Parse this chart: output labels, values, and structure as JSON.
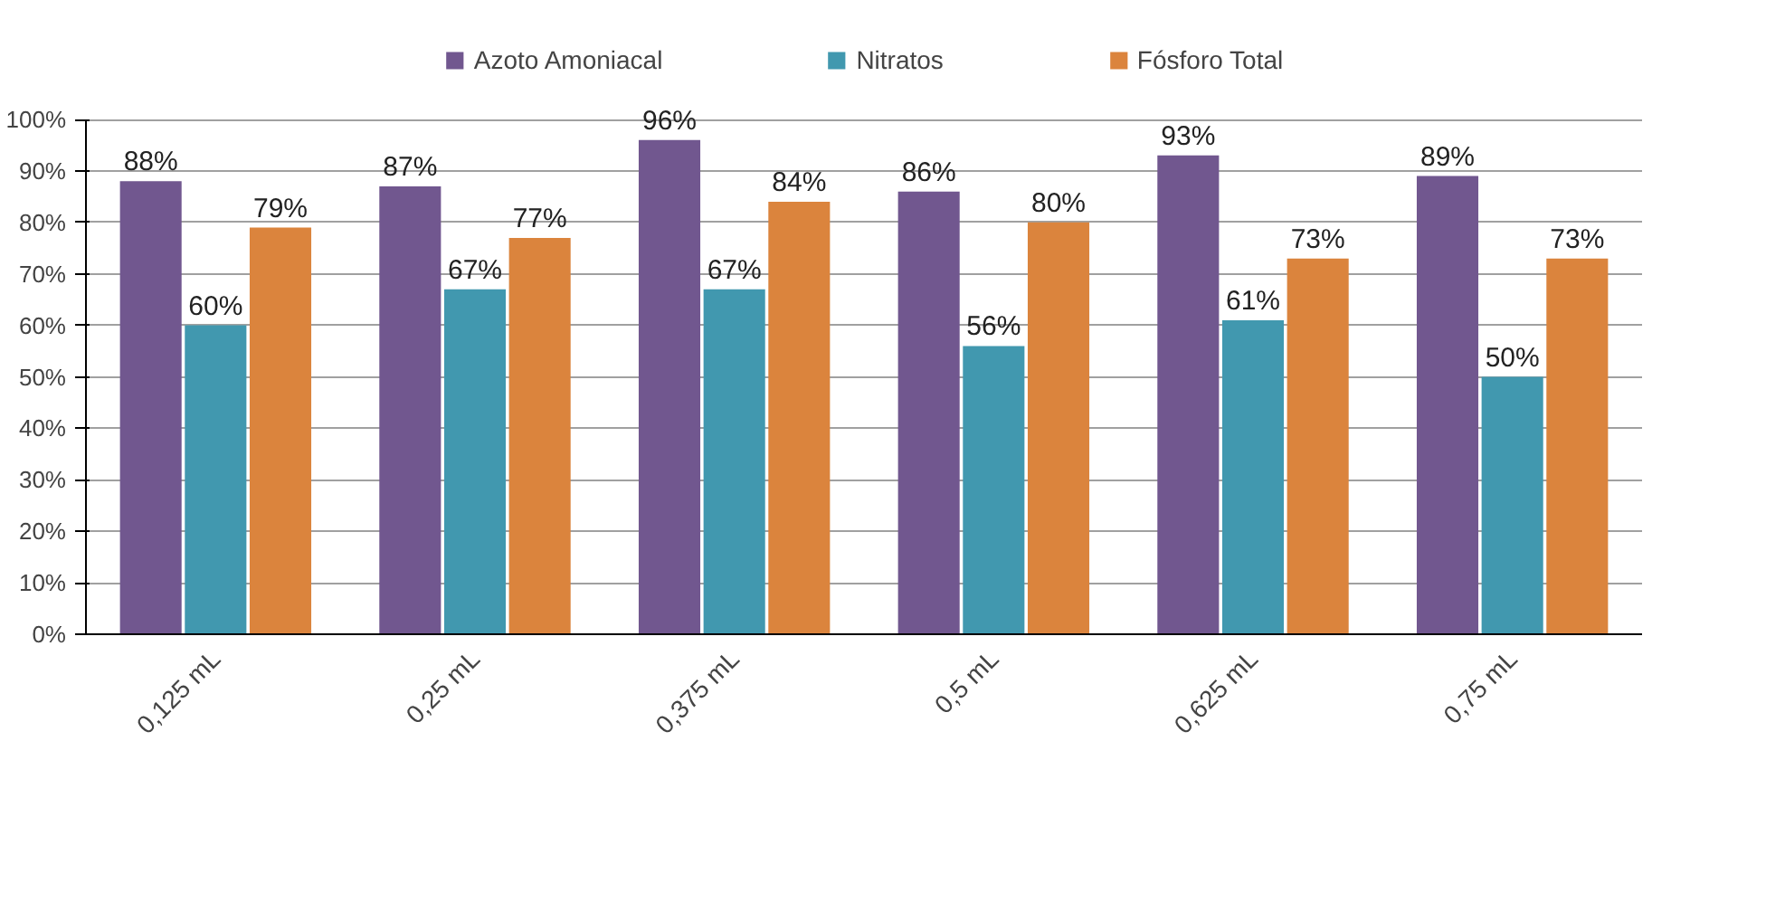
{
  "chart_data": {
    "type": "bar",
    "categories": [
      "0,125 mL",
      "0,25 mL",
      "0,375 mL",
      "0,5 mL",
      "0,625 mL",
      "0,75 mL"
    ],
    "series": [
      {
        "name": "Azoto Amoniacal",
        "color": "#71578f",
        "values": [
          88,
          87,
          96,
          86,
          93,
          89
        ],
        "value_labels": [
          "88%",
          "87%",
          "96%",
          "86%",
          "93%",
          "89%"
        ]
      },
      {
        "name": "Nitratos",
        "color": "#4198af",
        "values": [
          60,
          67,
          67,
          56,
          61,
          50
        ],
        "value_labels": [
          "60%",
          "67%",
          "67%",
          "56%",
          "61%",
          "50%"
        ]
      },
      {
        "name": "Fósforo Total",
        "color": "#db843d",
        "values": [
          79,
          77,
          84,
          80,
          73,
          73
        ],
        "value_labels": [
          "79%",
          "77%",
          "84%",
          "80%",
          "73%",
          "73%"
        ]
      }
    ],
    "ylim": [
      0,
      100
    ],
    "yticks": [
      {
        "value": 0,
        "label": "0%"
      },
      {
        "value": 10,
        "label": "10%"
      },
      {
        "value": 20,
        "label": "20%"
      },
      {
        "value": 30,
        "label": "30%"
      },
      {
        "value": 40,
        "label": "40%"
      },
      {
        "value": 50,
        "label": "50%"
      },
      {
        "value": 60,
        "label": "60%"
      },
      {
        "value": 70,
        "label": "70%"
      },
      {
        "value": 80,
        "label": "80%"
      },
      {
        "value": 90,
        "label": "90%"
      },
      {
        "value": 100,
        "label": "100%"
      }
    ],
    "grid": "y",
    "legend": "top"
  }
}
